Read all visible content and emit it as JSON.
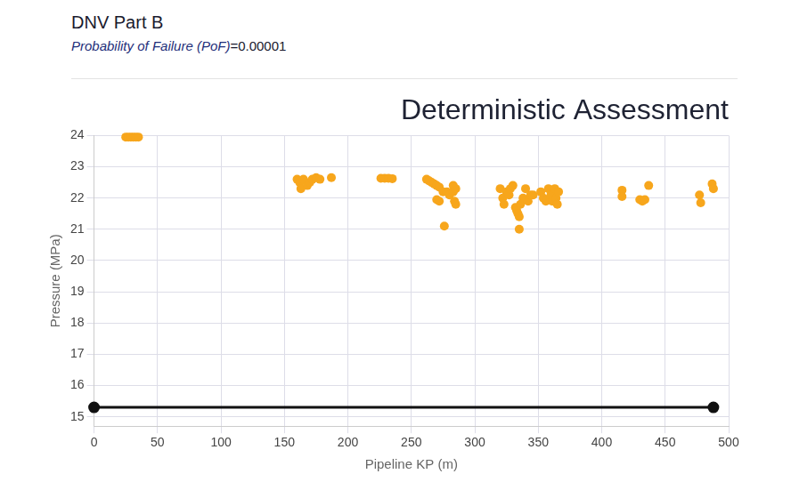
{
  "header": {
    "title": "DNV Part B",
    "subtitle": [
      "Probability of Failure (PoF)",
      "=0.00001"
    ]
  },
  "chart_data": {
    "type": "scatter",
    "title": "Deterministic Assessment",
    "x_label": "Pipeline KP (m)",
    "y_label": "Pressure (MPa)",
    "xlim": [
      0,
      500
    ],
    "xticks": [
      0,
      50,
      100,
      150,
      200,
      250,
      300,
      350,
      400,
      450,
      500
    ],
    "ylim": [
      14.7,
      24
    ],
    "yticks": [
      15,
      16,
      17,
      18,
      19,
      20,
      21,
      22,
      23,
      24
    ],
    "grid": true,
    "series": [
      {
        "type": "scatter",
        "color": "#f7a61c",
        "marker": "circle",
        "x": [
          25,
          27,
          29,
          31,
          33,
          35,
          160,
          162,
          163,
          165,
          168,
          170,
          172,
          175,
          178,
          187,
          226,
          229,
          232,
          235,
          262,
          264,
          266,
          268,
          270,
          272,
          270,
          272,
          275,
          276,
          278,
          280,
          283,
          284,
          285,
          283,
          285,
          320,
          322,
          323,
          325,
          327,
          328,
          330,
          332,
          333,
          334,
          335,
          335,
          336,
          338,
          340,
          342,
          344,
          346,
          352,
          354,
          356,
          358,
          360,
          361,
          363,
          364,
          365,
          366,
          416,
          416,
          430,
          432,
          434,
          437,
          477,
          478,
          487,
          488
        ],
        "values": [
          23.95,
          23.95,
          23.95,
          23.95,
          23.95,
          23.95,
          22.6,
          22.5,
          22.3,
          22.6,
          22.4,
          22.5,
          22.6,
          22.65,
          22.6,
          22.65,
          22.63,
          22.63,
          22.63,
          22.62,
          22.6,
          22.55,
          22.5,
          22.45,
          22.4,
          22.35,
          21.95,
          21.9,
          22.2,
          21.1,
          22.2,
          22.1,
          22.4,
          21.9,
          21.8,
          22.2,
          22.3,
          22.3,
          22.0,
          21.8,
          22.2,
          22.1,
          22.3,
          22.4,
          21.7,
          21.6,
          21.5,
          21.0,
          21.4,
          21.8,
          22.0,
          22.3,
          21.9,
          22.1,
          22.1,
          22.2,
          22.0,
          21.9,
          22.3,
          22.1,
          21.9,
          22.3,
          22.0,
          21.8,
          22.2,
          22.25,
          22.05,
          21.95,
          21.9,
          21.95,
          22.4,
          22.1,
          21.85,
          22.45,
          22.3
        ]
      },
      {
        "type": "line",
        "color": "#111111",
        "marker": "circle",
        "x": [
          0,
          488
        ],
        "values": [
          15.3,
          15.3
        ]
      }
    ]
  }
}
